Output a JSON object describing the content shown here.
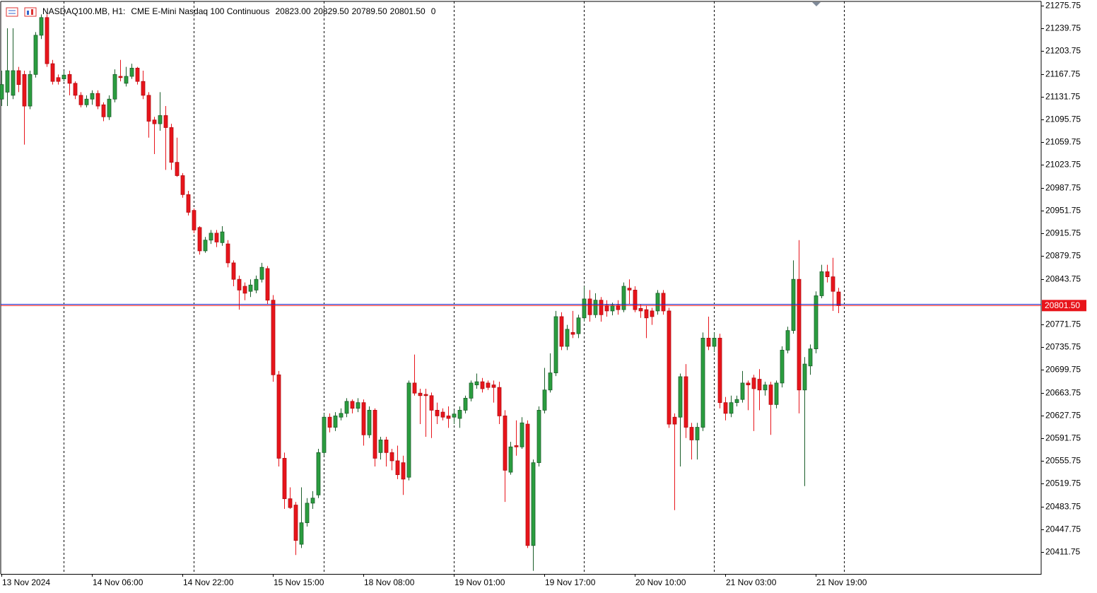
{
  "chart_data": {
    "type": "candlestick",
    "header": {
      "symbol": "NASDAQ100.MB, H1:",
      "description": "CME E-Mini Nasdaq 100 Continuous",
      "ohlc": [
        {
          "value": 20823,
          "label": "20823.00"
        },
        {
          "value": 20829.5,
          "label": "20829.50"
        },
        {
          "value": 20789.5,
          "label": "20789.50"
        },
        {
          "value": 20801.5,
          "label": "20801.50"
        }
      ],
      "spread": 0
    },
    "categories": [
      "13 Nov 2024",
      null,
      null,
      null,
      null,
      null,
      null,
      null,
      null,
      null,
      null,
      null,
      null,
      null,
      null,
      null,
      "14 Nov 06:00",
      null,
      null,
      null,
      null,
      null,
      null,
      null,
      null,
      null,
      null,
      null,
      null,
      null,
      null,
      null,
      "14 Nov 22:00",
      null,
      null,
      null,
      null,
      null,
      null,
      null,
      null,
      null,
      null,
      null,
      null,
      null,
      null,
      null,
      "15 Nov 15:00",
      null,
      null,
      null,
      null,
      null,
      null,
      null,
      null,
      null,
      null,
      null,
      null,
      null,
      null,
      null,
      "18 Nov 08:00",
      null,
      null,
      null,
      null,
      null,
      null,
      null,
      null,
      null,
      null,
      null,
      null,
      null,
      null,
      null,
      "19 Nov 01:00",
      null,
      null,
      null,
      null,
      null,
      null,
      null,
      null,
      null,
      null,
      null,
      null,
      null,
      null,
      null,
      "19 Nov 17:00",
      null,
      null,
      null,
      null,
      null,
      null,
      null,
      null,
      null,
      null,
      null,
      null,
      null,
      null,
      null,
      "20 Nov 10:00",
      null,
      null,
      null,
      null,
      null,
      null,
      null,
      null,
      null,
      null,
      null,
      null,
      null,
      null,
      null,
      "21 Nov 03:00",
      null,
      null,
      null,
      null,
      null,
      null,
      null,
      null,
      null,
      null,
      null,
      null,
      null,
      null,
      null,
      "21 Nov 19:00",
      null,
      null,
      null,
      null
    ],
    "open": [
      21128,
      21139,
      21134,
      21173,
      21167,
      21117,
      21167,
      21229,
      21257,
      21184,
      21162,
      21160,
      21167,
      21153,
      21134,
      21119,
      21128,
      21137,
      21119,
      21100,
      21128,
      21164,
      21153,
      21164,
      21177,
      21156,
      21134,
      21095,
      21089,
      21102,
      21083,
      21028,
      21007,
      20977,
      20952,
      20925,
      20888,
      20905,
      20916,
      20901,
      20899,
      20869,
      20843,
      20832,
      20824,
      20826,
      20843,
      20860,
      20810,
      20692,
      20560,
      20496,
      20486,
      20424,
      20458,
      20489,
      20502,
      20569,
      20625,
      20609,
      20625,
      20631,
      20650,
      20639,
      20648,
      20597,
      20636,
      20569,
      20589,
      20569,
      20556,
      20553,
      20530,
      20679,
      20663,
      20661,
      20659,
      20636,
      20633,
      20627,
      20625,
      20623,
      20636,
      20655,
      20676,
      20681,
      20679,
      20676,
      20672,
      20627,
      20538,
      20580,
      20578,
      20614,
      20422,
      20553,
      20636,
      20668,
      20695,
      20784,
      20737,
      20759,
      20757,
      20782,
      20812,
      20787,
      20810,
      20802,
      20793,
      20802,
      20795,
      20829,
      20826,
      20797,
      20795,
      20793,
      20793,
      20821,
      20793,
      20625,
      20625,
      20689,
      20609,
      20589,
      20609,
      20750,
      20737,
      20750,
      20648,
      20631,
      20648,
      20653,
      20679,
      20687,
      20685,
      20668,
      20676,
      20645,
      20679,
      20731,
      20762,
      20843,
      20668,
      20706,
      20733,
      20817,
      20855,
      20847,
      20823
    ],
    "high": [
      21173,
      21240,
      21240,
      21179,
      21173,
      21173,
      21234,
      21262,
      21262,
      21190,
      21167,
      21173,
      21173,
      21156,
      21139,
      21134,
      21142,
      21142,
      21123,
      21134,
      21175,
      21190,
      21179,
      21184,
      21179,
      21173,
      21139,
      21100,
      21139,
      21117,
      21089,
      21067,
      21011,
      20983,
      20955,
      20927,
      20910,
      20921,
      20921,
      20927,
      20905,
      20873,
      20849,
      20838,
      20843,
      20849,
      20869,
      20864,
      20818,
      20698,
      20569,
      20514,
      20491,
      20514,
      20497,
      20508,
      20575,
      20631,
      20631,
      20633,
      20639,
      20655,
      20653,
      20655,
      20653,
      20642,
      20639,
      20594,
      20594,
      20575,
      20580,
      20564,
      20683,
      20724,
      20670,
      20670,
      20664,
      20648,
      20639,
      20642,
      20636,
      20642,
      20659,
      20683,
      20694,
      20687,
      20683,
      20683,
      20681,
      20636,
      20586,
      20620,
      20625,
      20620,
      20558,
      20642,
      20703,
      20726,
      20793,
      20791,
      20771,
      20793,
      20787,
      20832,
      20826,
      20821,
      20815,
      20810,
      20806,
      20810,
      20838,
      20843,
      20832,
      20804,
      20802,
      20798,
      20826,
      20826,
      20798,
      20631,
      20694,
      20709,
      20616,
      20616,
      20759,
      20784,
      20759,
      20757,
      20657,
      20659,
      20659,
      20698,
      20683,
      20692,
      20701,
      20681,
      20681,
      20683,
      20737,
      20768,
      20873,
      20905,
      20720,
      20740,
      20824,
      20866,
      20866,
      20877,
      20829.5
    ],
    "low": [
      21117,
      21117,
      21128,
      21139,
      21056,
      21112,
      21162,
      21223,
      21179,
      21151,
      21151,
      21156,
      21134,
      21128,
      21115,
      21115,
      21119,
      21112,
      21093,
      21095,
      21123,
      21156,
      21148,
      21160,
      21151,
      21128,
      21067,
      21041,
      21078,
      21016,
      21016,
      21005,
      20972,
      20944,
      20916,
      20882,
      20885,
      20899,
      20894,
      20896,
      20862,
      20832,
      20795,
      20810,
      20815,
      20821,
      20838,
      20804,
      20681,
      20547,
      20480,
      20480,
      20407,
      20418,
      20452,
      20480,
      20497,
      20564,
      20601,
      20603,
      20620,
      20625,
      20631,
      20633,
      20580,
      20592,
      20547,
      20558,
      20547,
      20541,
      20527,
      20502,
      20525,
      20659,
      20614,
      20594,
      20592,
      20614,
      20620,
      20608,
      20614,
      20608,
      20631,
      20650,
      20670,
      20664,
      20668,
      20648,
      20614,
      20491,
      20534,
      20564,
      20575,
      20418,
      20382,
      20547,
      20631,
      20664,
      20690,
      20731,
      20731,
      20750,
      20750,
      20776,
      20776,
      20782,
      20776,
      20784,
      20786,
      20787,
      20791,
      20804,
      20791,
      20782,
      20750,
      20771,
      20787,
      20787,
      20608,
      20478,
      20547,
      20592,
      20558,
      20558,
      20603,
      20731,
      20728,
      20639,
      20620,
      20625,
      20642,
      20648,
      20636,
      20603,
      20636,
      20659,
      20597,
      20639,
      20672,
      20726,
      20757,
      20631,
      20516,
      20692,
      20726,
      20813,
      20838,
      20793,
      20789.5
    ],
    "close": [
      21151,
      21173,
      21173,
      21151,
      21117,
      21167,
      21229,
      21257,
      21184,
      21156,
      21156,
      21166,
      21153,
      21134,
      21119,
      21128,
      21137,
      21117,
      21100,
      21128,
      21167,
      21162,
      21164,
      21177,
      21156,
      21134,
      21093,
      21089,
      21102,
      21083,
      21028,
      21007,
      20977,
      20949,
      20921,
      20888,
      20905,
      20916,
      20902,
      20918,
      20869,
      20843,
      20826,
      20821,
      20834,
      20843,
      20862,
      20810,
      20692,
      20560,
      20496,
      20482,
      20430,
      20458,
      20489,
      20497,
      20569,
      20625,
      20609,
      20627,
      20631,
      20650,
      20639,
      20648,
      20597,
      20636,
      20560,
      20589,
      20569,
      20556,
      20534,
      20527,
      20679,
      20663,
      20659,
      20659,
      20636,
      20627,
      20625,
      20623,
      20630,
      20636,
      20655,
      20679,
      20681,
      20670,
      20672,
      20672,
      20627,
      20541,
      20578,
      20578,
      20616,
      20422,
      20553,
      20636,
      20668,
      20695,
      20784,
      20737,
      20764,
      20756,
      20782,
      20812,
      20787,
      20810,
      20787,
      20793,
      20802,
      20795,
      20832,
      20826,
      20795,
      20793,
      20782,
      20784,
      20821,
      20793,
      20614,
      20614,
      20689,
      20609,
      20589,
      20609,
      20750,
      20737,
      20750,
      20648,
      20631,
      20648,
      20653,
      20679,
      20676,
      20670,
      20668,
      20676,
      20645,
      20679,
      20731,
      20762,
      20843,
      20668,
      20709,
      20733,
      20817,
      20855,
      20847,
      20824,
      20801.5
    ],
    "up_color": "#2a9d3f",
    "up_border": "#1b5e2a",
    "down_color": "#e8141b",
    "down_border": "#b00d12",
    "ylim": [
      20377.1,
      21282.5
    ],
    "yticks": [
      21275.75,
      21239.75,
      21203.75,
      21167.75,
      21131.75,
      21095.75,
      21059.75,
      21023.75,
      20987.75,
      20951.75,
      20915.75,
      20879.75,
      20843.75,
      20771.75,
      20735.75,
      20699.75,
      20663.75,
      20627.75,
      20591.75,
      20555.75,
      20519.75,
      20483.75,
      20447.75,
      20411.75
    ],
    "grid": false,
    "period_separators": [
      11,
      34,
      57,
      80,
      103,
      126,
      149
    ],
    "bid_line": {
      "value": 20801.5,
      "label": "20801.50",
      "color": "#e8141b"
    },
    "ask_line": {
      "value": 20803.5,
      "color": "#1f2fd0"
    }
  }
}
